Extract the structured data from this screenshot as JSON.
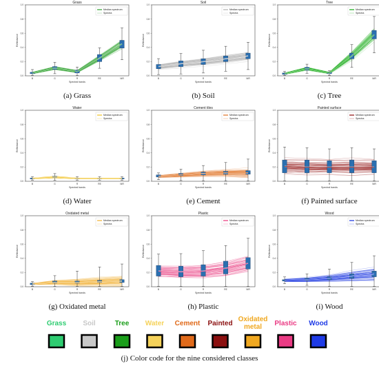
{
  "chart_data": [
    {
      "type": "line",
      "title": "Grass",
      "caption": "(a) Grass",
      "color": "#2ca02c",
      "categories": [
        "B",
        "G",
        "R",
        "RE",
        "NIR"
      ],
      "xlabel": "Spectral bands",
      "ylabel": "Reflectance",
      "ylim": [
        0,
        1.0
      ],
      "yticks": [
        "0.0",
        "0.2",
        "0.4",
        "0.6",
        "0.8",
        "1.0"
      ],
      "legend": [
        "Median spectrum",
        "Spectra"
      ],
      "median": [
        0.04,
        0.11,
        0.06,
        0.25,
        0.45
      ],
      "spread": [
        0.03,
        0.05,
        0.04,
        0.09,
        0.14
      ],
      "box_q1": [
        0.03,
        0.09,
        0.04,
        0.2,
        0.39
      ],
      "box_q3": [
        0.05,
        0.13,
        0.08,
        0.3,
        0.5
      ]
    },
    {
      "type": "line",
      "title": "Soil",
      "caption": "(b) Soil",
      "color": "#b0b0b0",
      "categories": [
        "B",
        "G",
        "R",
        "RE",
        "NIR"
      ],
      "xlabel": "Spectral bands",
      "ylabel": "Reflectance",
      "ylim": [
        0,
        1.0
      ],
      "yticks": [
        "0.0",
        "0.2",
        "0.4",
        "0.6",
        "0.8",
        "1.0"
      ],
      "legend": [
        "Median spectrum",
        "Spectra"
      ],
      "median": [
        0.13,
        0.17,
        0.2,
        0.24,
        0.28
      ],
      "spread": [
        0.07,
        0.09,
        0.1,
        0.11,
        0.12
      ],
      "box_q1": [
        0.1,
        0.13,
        0.16,
        0.2,
        0.24
      ],
      "box_q3": [
        0.16,
        0.21,
        0.24,
        0.28,
        0.32
      ]
    },
    {
      "type": "line",
      "title": "Tree",
      "caption": "(c) Tree",
      "color": "#11a811",
      "categories": [
        "B",
        "G",
        "R",
        "RE",
        "NIR"
      ],
      "xlabel": "Spectral bands",
      "ylabel": "Reflectance",
      "ylim": [
        0,
        1.0
      ],
      "yticks": [
        "0.0",
        "0.2",
        "0.4",
        "0.6",
        "0.8",
        "1.0"
      ],
      "legend": [
        "Median spectrum",
        "Spectra"
      ],
      "median": [
        0.03,
        0.1,
        0.04,
        0.28,
        0.58
      ],
      "spread": [
        0.02,
        0.04,
        0.02,
        0.1,
        0.16
      ],
      "box_q1": [
        0.02,
        0.08,
        0.03,
        0.24,
        0.52
      ],
      "box_q3": [
        0.04,
        0.12,
        0.05,
        0.32,
        0.64
      ]
    },
    {
      "type": "line",
      "title": "Water",
      "caption": "(d) Water",
      "color": "#f0c020",
      "categories": [
        "B",
        "G",
        "R",
        "RE",
        "NIR"
      ],
      "xlabel": "Spectral bands",
      "ylabel": "Reflectance",
      "ylim": [
        0,
        1.0
      ],
      "yticks": [
        "0.0",
        "0.2",
        "0.4",
        "0.6",
        "0.8",
        "1.0"
      ],
      "legend": [
        "Median spectrum",
        "Spectra"
      ],
      "median": [
        0.04,
        0.06,
        0.04,
        0.04,
        0.04
      ],
      "spread": [
        0.015,
        0.03,
        0.015,
        0.015,
        0.015
      ],
      "box_q1": [
        0.035,
        0.05,
        0.035,
        0.035,
        0.035
      ],
      "box_q3": [
        0.045,
        0.07,
        0.045,
        0.045,
        0.045
      ]
    },
    {
      "type": "line",
      "title": "Cement tiles",
      "caption": "(e) Cement",
      "color": "#e07020",
      "categories": [
        "B",
        "G",
        "R",
        "RE",
        "NIR"
      ],
      "xlabel": "Spectral bands",
      "ylabel": "Reflectance",
      "ylim": [
        0,
        1.0
      ],
      "yticks": [
        "0.0",
        "0.2",
        "0.4",
        "0.6",
        "0.8",
        "1.0"
      ],
      "legend": [
        "Median spectrum",
        "Spectra"
      ],
      "median": [
        0.07,
        0.09,
        0.11,
        0.12,
        0.12
      ],
      "spread": [
        0.03,
        0.05,
        0.07,
        0.09,
        0.12
      ],
      "box_q1": [
        0.06,
        0.08,
        0.09,
        0.1,
        0.1
      ],
      "box_q3": [
        0.09,
        0.11,
        0.13,
        0.14,
        0.15
      ]
    },
    {
      "type": "line",
      "title": "Painted surface",
      "caption": "(f) Painted surface",
      "color": "#8b0a0a",
      "categories": [
        "B",
        "G",
        "R",
        "RE",
        "NIR"
      ],
      "xlabel": "Spectral bands",
      "ylabel": "Reflectance",
      "ylim": [
        0,
        1.0
      ],
      "yticks": [
        "0.0",
        "0.2",
        "0.4",
        "0.6",
        "0.8",
        "1.0"
      ],
      "legend": [
        "Median spectrum",
        "Spectra"
      ],
      "median": [
        0.21,
        0.2,
        0.2,
        0.2,
        0.2
      ],
      "spread": [
        0.17,
        0.17,
        0.16,
        0.17,
        0.16
      ],
      "box_q1": [
        0.12,
        0.12,
        0.12,
        0.12,
        0.12
      ],
      "box_q3": [
        0.3,
        0.3,
        0.29,
        0.3,
        0.29
      ]
    },
    {
      "type": "line",
      "title": "Oxidated metal",
      "caption": "(g) Oxidated metal",
      "color": "#f0b030",
      "categories": [
        "B",
        "G",
        "R",
        "RE",
        "NIR"
      ],
      "xlabel": "Spectral bands",
      "ylabel": "Reflectance",
      "ylim": [
        0,
        1.0
      ],
      "yticks": [
        "0.0",
        "0.2",
        "0.4",
        "0.6",
        "0.8",
        "1.0"
      ],
      "legend": [
        "Median spectrum",
        "Spectra"
      ],
      "median": [
        0.04,
        0.06,
        0.06,
        0.07,
        0.08
      ],
      "spread": [
        0.02,
        0.06,
        0.1,
        0.13,
        0.15
      ],
      "box_q1": [
        0.03,
        0.05,
        0.05,
        0.06,
        0.06
      ],
      "box_q3": [
        0.05,
        0.08,
        0.08,
        0.09,
        0.1
      ]
    },
    {
      "type": "line",
      "title": "Plastic",
      "caption": "(h) Plastic",
      "color": "#e8347a",
      "categories": [
        "B",
        "G",
        "R",
        "RE",
        "NIR"
      ],
      "xlabel": "Spectral bands",
      "ylabel": "Reflectance",
      "ylim": [
        0,
        1.0
      ],
      "yticks": [
        "0.0",
        "0.2",
        "0.4",
        "0.6",
        "0.8",
        "1.0"
      ],
      "legend": [
        "Median spectrum",
        "Spectra"
      ],
      "median": [
        0.22,
        0.21,
        0.22,
        0.26,
        0.33
      ],
      "spread": [
        0.15,
        0.16,
        0.18,
        0.2,
        0.22
      ],
      "box_q1": [
        0.15,
        0.14,
        0.15,
        0.18,
        0.25
      ],
      "box_q3": [
        0.3,
        0.29,
        0.31,
        0.36,
        0.41
      ]
    },
    {
      "type": "line",
      "title": "Wood",
      "caption": "(i) Wood",
      "color": "#1530e0",
      "categories": [
        "B",
        "G",
        "R",
        "RE",
        "NIR"
      ],
      "xlabel": "Spectral bands",
      "ylabel": "Reflectance",
      "ylim": [
        0,
        1.0
      ],
      "yticks": [
        "0.0",
        "0.2",
        "0.4",
        "0.6",
        "0.8",
        "1.0"
      ],
      "legend": [
        "Median spectrum",
        "Spectra"
      ],
      "median": [
        0.09,
        0.1,
        0.12,
        0.15,
        0.18
      ],
      "spread": [
        0.03,
        0.05,
        0.08,
        0.12,
        0.16
      ],
      "box_q1": [
        0.08,
        0.09,
        0.1,
        0.12,
        0.14
      ],
      "box_q3": [
        0.1,
        0.12,
        0.14,
        0.18,
        0.22
      ]
    }
  ],
  "color_code": {
    "caption": "(j) Color code for the nine considered classes",
    "classes": [
      {
        "label": "Grass",
        "color": "#2ecc71"
      },
      {
        "label": "Soil",
        "color": "#c8c8c8"
      },
      {
        "label": "Tree",
        "color": "#1a9e1a"
      },
      {
        "label": "Water",
        "color": "#f5d25a"
      },
      {
        "label": "Cement",
        "color": "#e06a1a"
      },
      {
        "label": "Painted",
        "color": "#8b1010"
      },
      {
        "label": "Oxidated\nmetal",
        "color": "#f0a820"
      },
      {
        "label": "Plastic",
        "color": "#ea3b84"
      },
      {
        "label": "Wood",
        "color": "#1f3be6"
      }
    ]
  }
}
